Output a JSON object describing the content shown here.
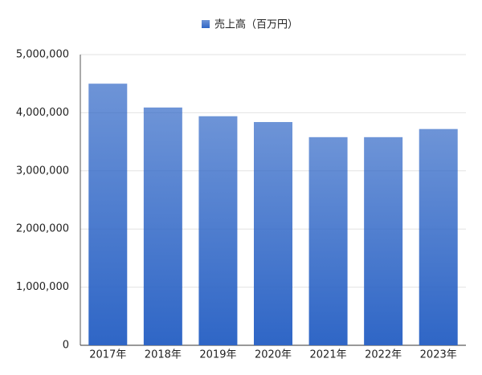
{
  "chart_data": {
    "type": "bar",
    "legend": "売上高（百万円）",
    "categories": [
      "2017年",
      "2018年",
      "2019年",
      "2020年",
      "2021年",
      "2022年",
      "2023年"
    ],
    "values": [
      4500000,
      4090000,
      3940000,
      3840000,
      3580000,
      3580000,
      3720000
    ],
    "color": "#2f66c6",
    "ylim": [
      0,
      5000000
    ],
    "yticks": [
      0,
      {
        "value": 1000000,
        "label": "1,000,000"
      },
      {
        "value": 2000000,
        "label": "2,000,000"
      },
      {
        "value": 3000000,
        "label": "3,000,000"
      },
      {
        "value": 4000000,
        "label": "4,000,000"
      },
      {
        "value": 5000000,
        "label": "5,000,000"
      }
    ],
    "grid": true
  }
}
